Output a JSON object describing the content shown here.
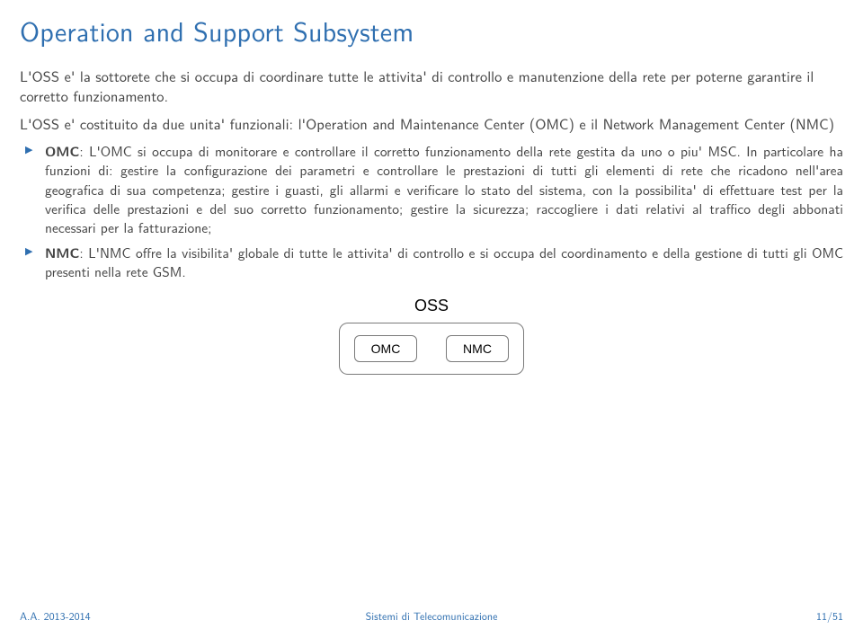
{
  "colors": {
    "accent": "#2f6fb0",
    "text": "#444444",
    "diagram_border": "#7a7a7a",
    "bg": "#ffffff"
  },
  "title": "Operation and Support Subsystem",
  "intro": "L'OSS e' la sottorete che si occupa di coordinare tutte le attivita' di controllo e manutenzione della rete per poterne garantire il corretto funzionamento.",
  "subintro": "L'OSS e' costituito da due unita' funzionali: l'Operation and Maintenance Center (OMC) e il Network Management Center (NMC)",
  "bullets": [
    {
      "lead": "OMC",
      "text": ": L'OMC si occupa di monitorare e controllare il corretto funzionamento della rete gestita da uno o piu' MSC. In particolare ha funzioni di: gestire la configurazione dei parametri e controllare le prestazioni di tutti gli elementi di rete che ricadono nell'area geografica di sua competenza; gestire i guasti, gli allarmi e verificare lo stato del sistema, con la possibilita' di effettuare test per la verifica delle prestazioni e del suo corretto funzionamento; gestire la sicurezza; raccogliere i dati relativi al traffico degli abbonati necessari per la fatturazione;"
    },
    {
      "lead": "NMC",
      "text": ": L'NMC offre la visibilita' globale di tutte le attivita' di controllo e si occupa del coordinamento e della gestione di tutti gli OMC presenti nella rete GSM."
    }
  ],
  "diagram": {
    "top_label": "OSS",
    "left_box": "OMC",
    "right_box": "NMC"
  },
  "footer": {
    "left": "A.A. 2013-2014",
    "center": "Sistemi di Telecomunicazione",
    "right": "11/51"
  }
}
